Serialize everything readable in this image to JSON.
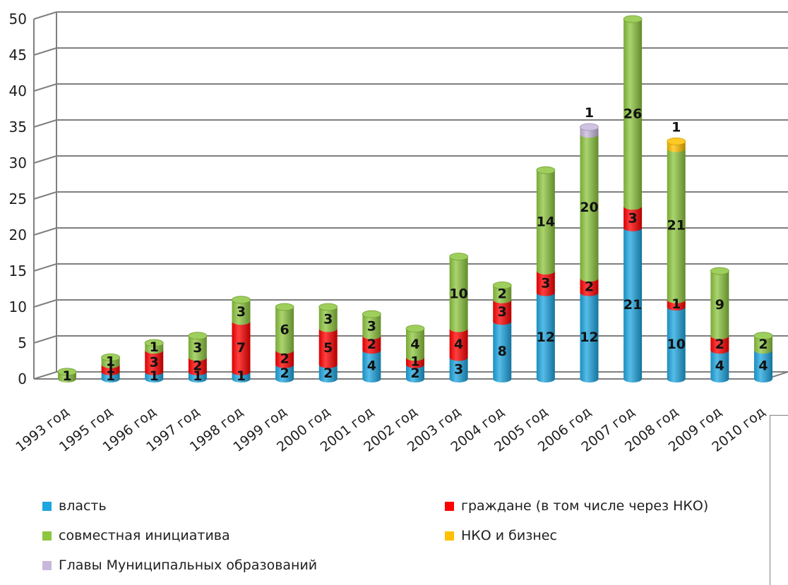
{
  "chart_data": {
    "type": "bar",
    "stacked": true,
    "style": "3d-cylinder",
    "title": "",
    "xlabel": "",
    "ylabel": "",
    "ylim": [
      0,
      50
    ],
    "yticks": [
      0,
      5,
      10,
      15,
      20,
      25,
      30,
      35,
      40,
      45,
      50
    ],
    "grid": true,
    "legend_position": "bottom",
    "categories": [
      "1993 год",
      "1995 год",
      "1996 год",
      "1997 год",
      "1998 год",
      "1999 год",
      "2000 год",
      "2001 год",
      "2002 год",
      "2003 год",
      "2004 год",
      "2005 год",
      "2006 год",
      "2007 год",
      "2008 год",
      "2009 год",
      "2010 год"
    ],
    "series": [
      {
        "name": "власть",
        "color": "#1ea6e0",
        "values": [
          0,
          1,
          1,
          1,
          1,
          2,
          2,
          4,
          2,
          3,
          8,
          12,
          12,
          21,
          10,
          4,
          4
        ],
        "labels": [
          "",
          "1",
          "1",
          "1",
          "1",
          "2",
          "2",
          "4",
          "2",
          "3",
          "8",
          "12",
          "12",
          "21",
          "10",
          "4",
          "4"
        ]
      },
      {
        "name": "граждане (в том числе через НКО)",
        "color": "#ff0000",
        "values": [
          0,
          1,
          3,
          2,
          7,
          2,
          5,
          2,
          1,
          4,
          3,
          3,
          2,
          3,
          1,
          2,
          0
        ],
        "labels": [
          "",
          "1",
          "3",
          "2",
          "7",
          "2",
          "5",
          "2",
          "1",
          "4",
          "3",
          "3",
          "2",
          "3",
          "1",
          "2",
          ""
        ]
      },
      {
        "name": "совместная инициатива",
        "color": "#8dc63f",
        "values": [
          1,
          1,
          1,
          3,
          3,
          6,
          3,
          3,
          4,
          10,
          2,
          14,
          20,
          26,
          21,
          9,
          2
        ],
        "labels": [
          "1",
          "1",
          "1",
          "3",
          "3",
          "6",
          "3",
          "3",
          "4",
          "10",
          "2",
          "14",
          "20",
          "26",
          "21",
          "9",
          "2"
        ]
      },
      {
        "name": "НКО и бизнес",
        "color": "#ffc000",
        "values": [
          0,
          0,
          0,
          0,
          0,
          0,
          0,
          0,
          0,
          0,
          0,
          0,
          0,
          0,
          1,
          0,
          0
        ],
        "labels": [
          "",
          "",
          "",
          "",
          "",
          "",
          "",
          "",
          "",
          "",
          "",
          "",
          "",
          "",
          "1",
          "",
          ""
        ]
      },
      {
        "name": "Главы Муниципальных образований",
        "color": "#c8b8dc",
        "values": [
          0,
          0,
          0,
          0,
          0,
          0,
          0,
          0,
          0,
          0,
          0,
          0,
          1,
          0,
          0,
          0,
          0
        ],
        "labels": [
          "",
          "",
          "",
          "",
          "",
          "",
          "",
          "",
          "",
          "",
          "",
          "",
          "1",
          "",
          "",
          "",
          ""
        ]
      }
    ]
  },
  "legend": {
    "items": [
      {
        "name": "власть",
        "color": "#1ea6e0"
      },
      {
        "name": "граждане (в том числе через НКО)",
        "color": "#ff0000"
      },
      {
        "name": "совместная инициатива",
        "color": "#8dc63f"
      },
      {
        "name": "НКО и бизнес",
        "color": "#ffc000"
      },
      {
        "name": "Главы Муниципальных образований",
        "color": "#c8b8dc"
      }
    ]
  }
}
